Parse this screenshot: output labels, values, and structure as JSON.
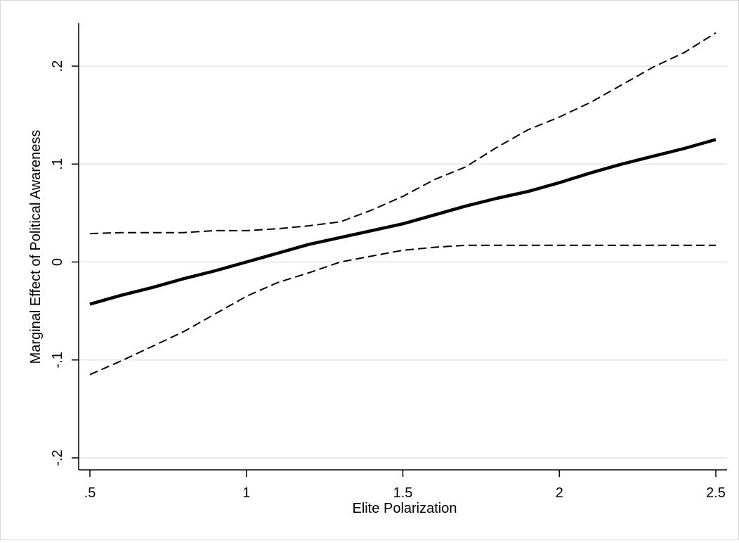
{
  "chart_data": {
    "type": "line",
    "title": "",
    "xlabel": "Elite Polarization",
    "ylabel": "Marginal Effect of Political Awareness",
    "xlim": [
      0.5,
      2.5
    ],
    "ylim": [
      -0.2,
      0.2
    ],
    "x_ticks": [
      {
        "value": 0.5,
        "label": ".5"
      },
      {
        "value": 1,
        "label": "1"
      },
      {
        "value": 1.5,
        "label": "1.5"
      },
      {
        "value": 2,
        "label": "2"
      },
      {
        "value": 2.5,
        "label": "2.5"
      }
    ],
    "y_ticks": [
      {
        "value": -0.2,
        "label": "-.2"
      },
      {
        "value": -0.1,
        "label": "-.1"
      },
      {
        "value": 0,
        "label": "0"
      },
      {
        "value": 0.1,
        "label": ".1"
      },
      {
        "value": 0.2,
        "label": ".2"
      }
    ],
    "grid": "horizontal",
    "x": [
      0.5,
      0.6,
      0.7,
      0.8,
      0.9,
      1.0,
      1.1,
      1.2,
      1.3,
      1.4,
      1.5,
      1.6,
      1.7,
      1.8,
      1.9,
      2.0,
      2.1,
      2.2,
      2.3,
      2.4,
      2.5
    ],
    "series": [
      {
        "style": "solid",
        "width": "thick",
        "values": [
          -0.043,
          -0.034,
          -0.026,
          -0.017,
          -0.009,
          0.0,
          0.009,
          0.018,
          0.025,
          0.032,
          0.039,
          0.048,
          0.057,
          0.065,
          0.072,
          0.081,
          0.091,
          0.1,
          0.108,
          0.116,
          0.125
        ]
      },
      {
        "style": "dashed",
        "width": "thin",
        "values": [
          0.029,
          0.03,
          0.03,
          0.03,
          0.032,
          0.032,
          0.034,
          0.037,
          0.041,
          0.053,
          0.067,
          0.084,
          0.097,
          0.117,
          0.135,
          0.148,
          0.163,
          0.181,
          0.199,
          0.214,
          0.234
        ]
      },
      {
        "style": "dashed",
        "width": "thin",
        "values": [
          -0.115,
          -0.101,
          -0.086,
          -0.071,
          -0.053,
          -0.035,
          -0.021,
          -0.011,
          0.0,
          0.006,
          0.012,
          0.015,
          0.017,
          0.017,
          0.017,
          0.017,
          0.017,
          0.017,
          0.017,
          0.017,
          0.017
        ]
      }
    ]
  }
}
